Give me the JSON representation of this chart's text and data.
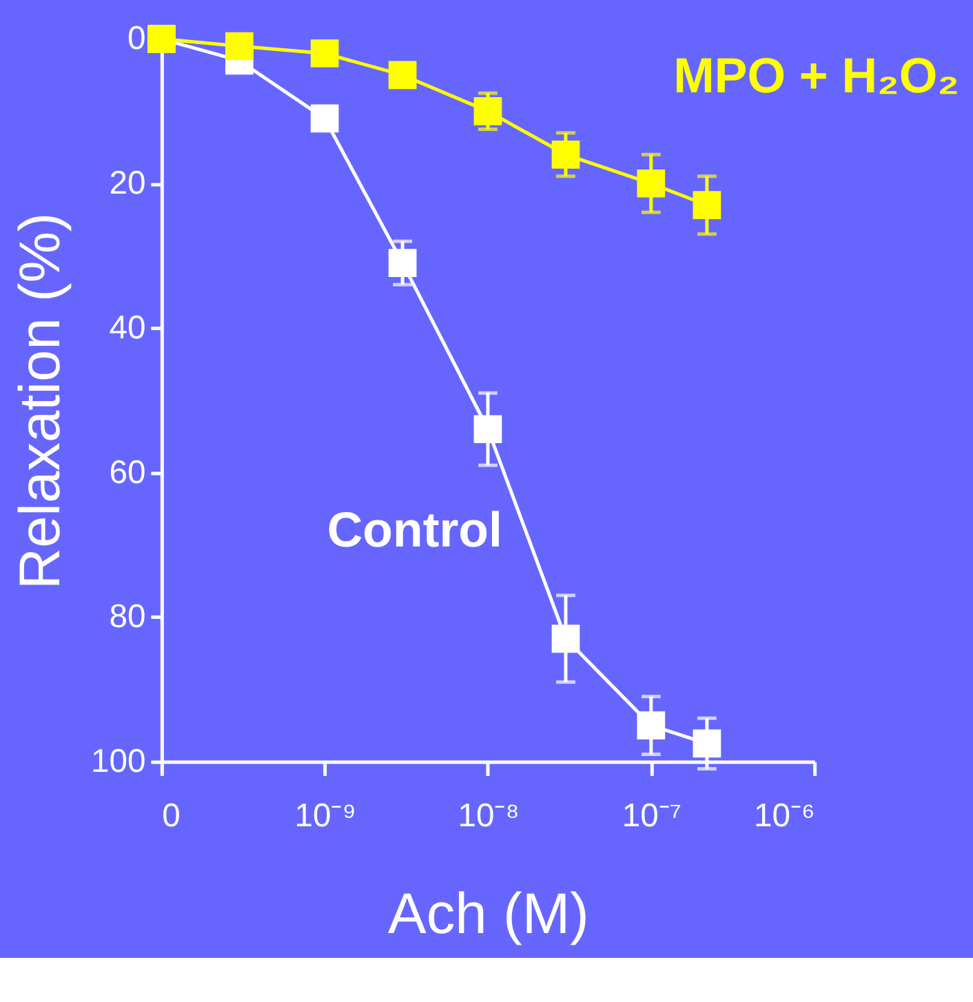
{
  "chart_data": {
    "type": "line",
    "xlabel": "Ach (M)",
    "ylabel": "Relaxation (%)",
    "log": "x",
    "marker": "square",
    "line_style": "solid",
    "grid": false,
    "legend": false,
    "xlim": [
      1e-10,
      1e-06
    ],
    "xticks": [
      {
        "value": 1e-10,
        "label": "0"
      },
      {
        "value": 1e-09,
        "label": "10⁻⁹"
      },
      {
        "value": 1e-08,
        "label": "10⁻⁸"
      },
      {
        "value": 1e-07,
        "label": "10⁻⁷"
      },
      {
        "value": 1e-06,
        "label": "10⁻⁶"
      }
    ],
    "ylim": [
      100,
      0
    ],
    "yticks": [
      0,
      20,
      40,
      60,
      80,
      100
    ],
    "series": [
      {
        "name": "Control",
        "color": "#ffffff",
        "x": [
          1e-10,
          3e-10,
          1e-09,
          3e-09,
          1e-08,
          3e-08,
          1e-07,
          2.2e-07
        ],
        "values": [
          0,
          3,
          11,
          31,
          54,
          83,
          95,
          97.5
        ],
        "errors": [
          null,
          null,
          null,
          3,
          5,
          6,
          4,
          3.5
        ]
      },
      {
        "name": "MPO + H₂O₂",
        "color": "#ffff00",
        "x": [
          1e-10,
          3e-10,
          1e-09,
          3e-09,
          1e-08,
          3e-08,
          1e-07,
          2.2e-07
        ],
        "values": [
          0,
          1,
          2,
          5,
          10,
          16,
          20,
          23
        ],
        "errors": [
          null,
          null,
          null,
          1,
          2.5,
          3,
          4,
          4
        ]
      }
    ]
  }
}
